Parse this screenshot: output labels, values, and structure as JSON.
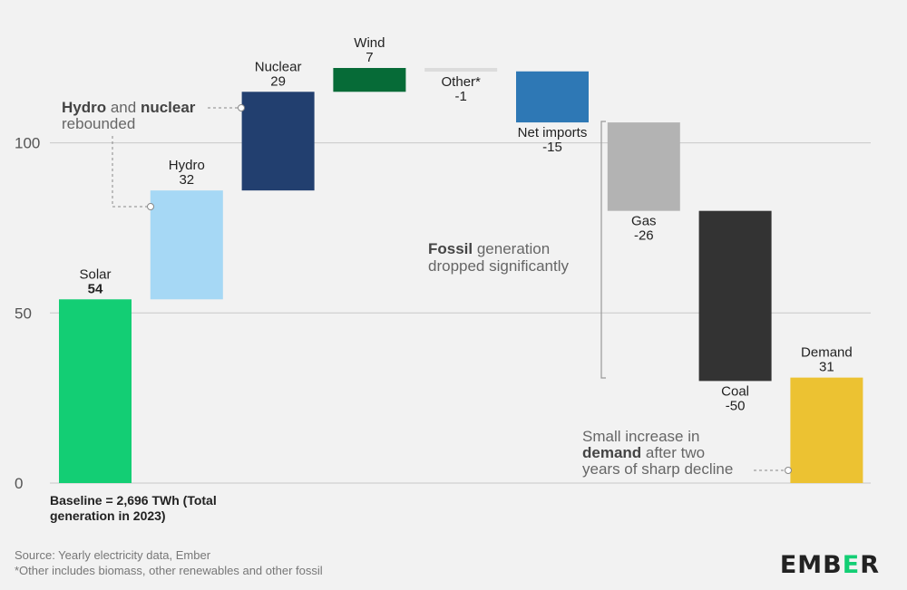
{
  "chart_data": {
    "type": "waterfall",
    "ylim": [
      0,
      130
    ],
    "yticks": [
      0,
      50,
      100
    ],
    "grid": true,
    "steps": [
      {
        "label": "Solar",
        "value": 54,
        "display": "54",
        "color": "#13ce74",
        "start": 0
      },
      {
        "label": "Hydro",
        "value": 32,
        "display": "32",
        "color": "#a6d8f5"
      },
      {
        "label": "Nuclear",
        "value": 29,
        "display": "29",
        "color": "#223f6f"
      },
      {
        "label": "Wind",
        "value": 7,
        "display": "7",
        "color": "#066b37"
      },
      {
        "label": "Other*",
        "value": -1,
        "display": "-1",
        "color": "#dcdcdc"
      },
      {
        "label": "Net imports",
        "value": -15,
        "display": "-15",
        "color": "#2e78b5"
      },
      {
        "label": "Gas",
        "value": -26,
        "display": "-26",
        "color": "#b3b3b3"
      },
      {
        "label": "Coal",
        "value": -50,
        "display": "-50",
        "color": "#333333"
      },
      {
        "label": "Demand",
        "value": 31,
        "display": "31",
        "color": "#ecc232"
      }
    ],
    "baseline_note": [
      "Baseline = 2,696 TWh (Total",
      "generation in 2023)"
    ],
    "annotations": {
      "hydro_nuclear": {
        "line1": [
          {
            "t": "Hydro",
            "b": true
          },
          {
            "t": " and ",
            "b": false
          },
          {
            "t": "nuclear",
            "b": true
          }
        ],
        "line2": "rebounded"
      },
      "fossil": {
        "line1": [
          {
            "t": "Fossil",
            "b": true
          },
          {
            "t": " generation",
            "b": false
          }
        ],
        "line2": "dropped significantly"
      },
      "demand": {
        "line1": "Small increase in",
        "line2": [
          {
            "t": "demand",
            "b": true
          },
          {
            "t": " after two",
            "b": false
          }
        ],
        "line3": "years of sharp decline"
      }
    }
  },
  "footer": {
    "source": "Source: Yearly electricity data, Ember",
    "note": "*Other includes biomass, other renewables and other fossil"
  },
  "logo": {
    "pre": "EMB",
    "mid": "E",
    "post": "R"
  }
}
